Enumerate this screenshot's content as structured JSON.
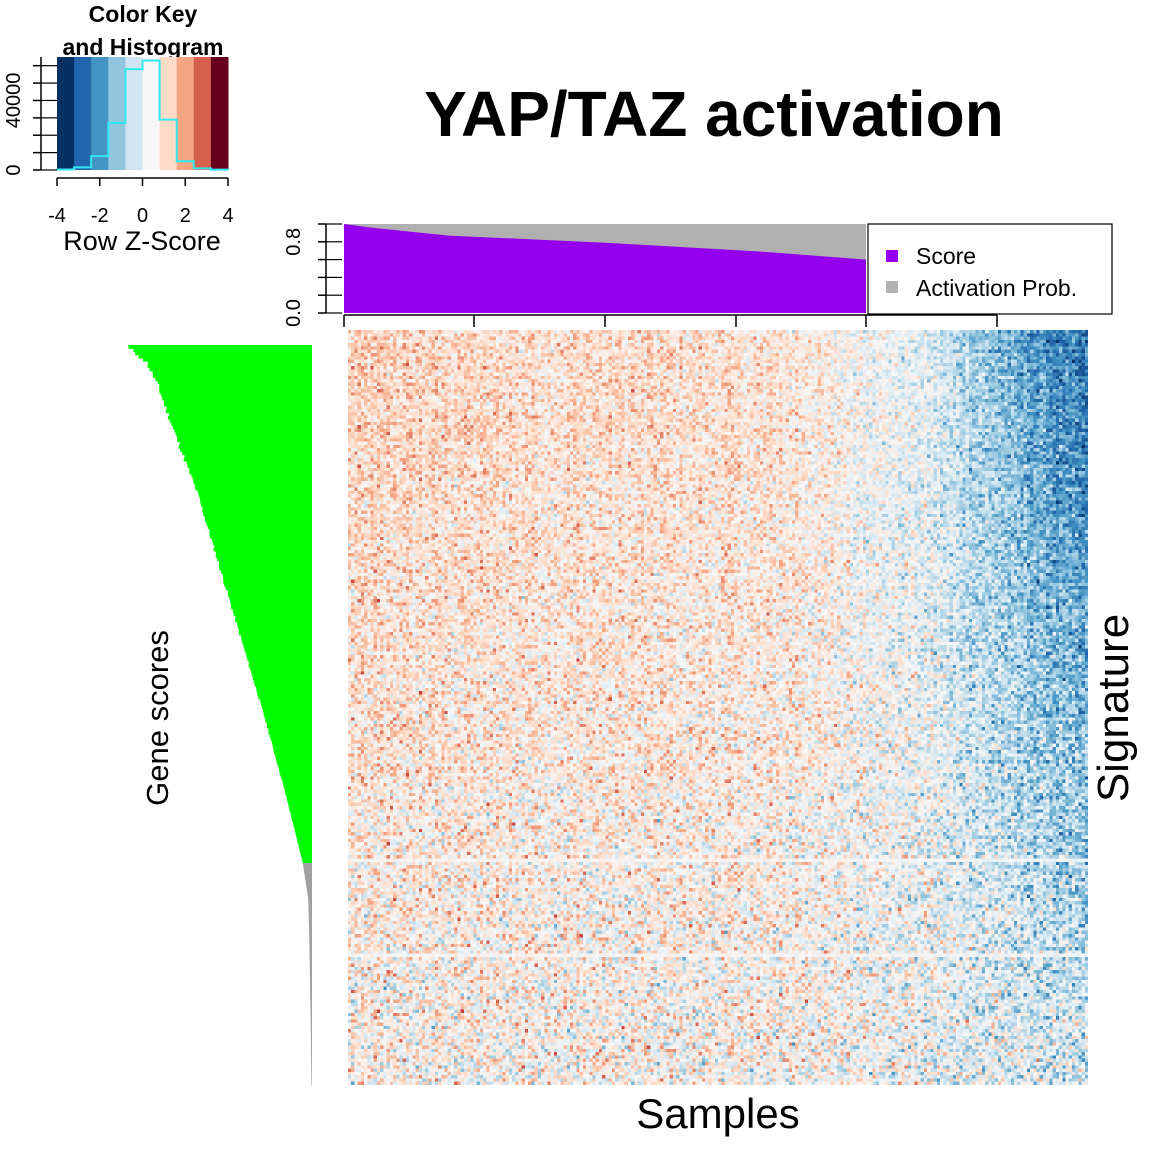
{
  "title": "YAP/TAZ activation",
  "colors": {
    "score": "#9400EE",
    "activation_prob": "#B0B0B0",
    "gene_bar": "#00FF00",
    "gene_bar_tail": "#A0A0A0",
    "hist_line": "#30E8F0",
    "palette": [
      "#053061",
      "#2166AC",
      "#4393C3",
      "#92C5DE",
      "#D1E5F0",
      "#F7F7F7",
      "#FDDBC7",
      "#F4A582",
      "#D6604D",
      "#B2182B",
      "#67001F"
    ]
  },
  "chart_data": [
    {
      "type": "histogram",
      "title": "Color Key\nand Histogram",
      "xlabel": "Row Z-Score",
      "ylabel": "",
      "xlim": [
        -4,
        4
      ],
      "ylim": [
        0,
        65000
      ],
      "x_ticks": [
        "-4",
        "-2",
        "0",
        "2",
        "4"
      ],
      "y_ticks": [
        "0",
        "40000"
      ],
      "color_breaks": [
        -4,
        -3.2,
        -2.4,
        -1.6,
        -0.8,
        0,
        0.8,
        1.6,
        2.4,
        3.2,
        4
      ],
      "bins": [
        {
          "x0": -4.0,
          "x1": -3.2,
          "count": 300
        },
        {
          "x0": -3.2,
          "x1": -2.4,
          "count": 1500
        },
        {
          "x0": -2.4,
          "x1": -1.6,
          "count": 8000
        },
        {
          "x0": -1.6,
          "x1": -0.8,
          "count": 27000
        },
        {
          "x0": -0.8,
          "x1": 0.0,
          "count": 58000
        },
        {
          "x0": 0.0,
          "x1": 0.8,
          "count": 63000
        },
        {
          "x0": 0.8,
          "x1": 1.6,
          "count": 29000
        },
        {
          "x0": 1.6,
          "x1": 2.4,
          "count": 5000
        },
        {
          "x0": 2.4,
          "x1": 3.2,
          "count": 900
        },
        {
          "x0": 3.2,
          "x1": 4.0,
          "count": 200
        }
      ]
    },
    {
      "type": "area",
      "title": "",
      "ylim": [
        0,
        1
      ],
      "y_ticks": [
        "0.0",
        "0.8"
      ],
      "legend": {
        "position": "top-right",
        "entries": [
          "Score",
          "Activation Prob."
        ]
      },
      "series": [
        {
          "name": "Score",
          "x": [
            0,
            0.05,
            0.2,
            0.5,
            0.8,
            1.0
          ],
          "values": [
            1.0,
            0.96,
            0.87,
            0.79,
            0.69,
            0.6
          ]
        },
        {
          "name": "Activation Prob.",
          "x": [
            0,
            1.0
          ],
          "values": [
            1.0,
            1.0
          ]
        }
      ]
    },
    {
      "type": "bar",
      "orientation": "horizontal",
      "ylabel": "Gene scores",
      "profile_fraction": [
        0,
        0.02,
        0.05,
        0.1,
        0.2,
        0.3,
        0.4,
        0.5,
        0.6,
        0.7,
        0.75,
        0.8,
        0.9,
        1.0
      ],
      "profile_value": [
        1.0,
        0.9,
        0.84,
        0.77,
        0.62,
        0.5,
        0.38,
        0.26,
        0.15,
        0.05,
        0.02,
        0.015,
        0.008,
        0.003
      ],
      "green_until_fraction": 0.7
    },
    {
      "type": "heatmap",
      "xlabel": "Samples",
      "ylabel": "Signature",
      "n_cols": 230,
      "n_rows": 230,
      "value_range": [
        -4,
        4
      ],
      "pattern": "red-biased (positive Z) in left 60% of samples, white in middle, strong blue (negative Z) in right-most samples especially upper rows"
    }
  ]
}
